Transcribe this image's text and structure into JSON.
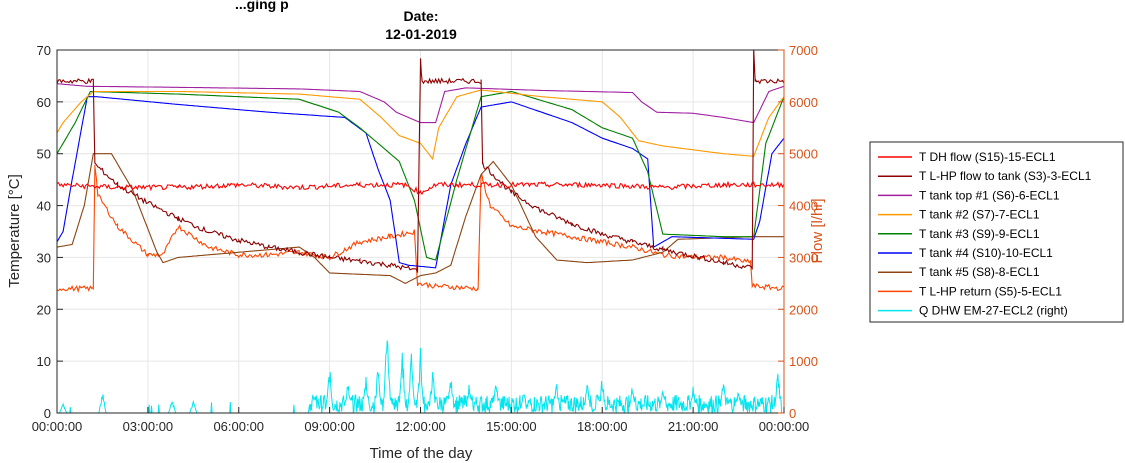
{
  "chart_data": {
    "type": "line",
    "title_partial": "...ging p",
    "title_line1": "Date:",
    "title_line2": "12-01-2019",
    "xlabel": "Time of the day",
    "ylabel": "Temperature [°C]",
    "ylabel_right": "Flow [l/hr]",
    "ylim": [
      0,
      70
    ],
    "ylim_right": [
      0,
      7000
    ],
    "yticks": [
      0,
      10,
      20,
      30,
      40,
      50,
      60,
      70
    ],
    "yticks_right": [
      0,
      1000,
      2000,
      3000,
      4000,
      5000,
      6000,
      7000
    ],
    "xlim": [
      0,
      24
    ],
    "xtick_hours": [
      0,
      3,
      6,
      9,
      12,
      15,
      18,
      21,
      24
    ],
    "xtick_labels": [
      "00:00:00",
      "03:00:00",
      "06:00:00",
      "09:00:00",
      "12:00:00",
      "15:00:00",
      "18:00:00",
      "21:00:00",
      "00:00:00"
    ],
    "grid": true,
    "legend_position": "outside-right",
    "series": [
      {
        "name": "T DH flow (S15)-15-ECL1",
        "color": "#ff0000",
        "axis": "left",
        "x": [
          0,
          2,
          4,
          6,
          8,
          10,
          11.5,
          12,
          12.5,
          14,
          16,
          18,
          20,
          22,
          24
        ],
        "y": [
          44,
          43.5,
          43.5,
          44,
          43.5,
          44,
          44,
          42.5,
          44,
          44,
          44,
          44,
          43.5,
          44,
          44
        ],
        "noise": 0.5
      },
      {
        "name": "T L-HP flow to tank (S3)-3-ECL1",
        "color": "#8b0000",
        "axis": "left",
        "x": [
          0,
          1.2,
          1.25,
          2,
          3,
          4,
          5,
          6,
          7,
          8,
          9,
          10,
          11,
          11.9,
          12.0,
          12.05,
          14.0,
          14.05,
          15,
          16,
          17,
          18,
          19,
          20,
          21,
          22,
          22.95,
          23.0,
          23.05,
          24
        ],
        "y": [
          64,
          64,
          48,
          44,
          40.5,
          37.5,
          35,
          33.3,
          32,
          31,
          30,
          29.3,
          28.5,
          27.5,
          68,
          64,
          64,
          48,
          42.5,
          39,
          36.5,
          34.5,
          33,
          31.5,
          30.3,
          29,
          28,
          70,
          64,
          64
        ],
        "noise": 0.5
      },
      {
        "name": "T tank top #1 (S6)-6-ECL1",
        "color": "#a020a0",
        "axis": "left",
        "x": [
          0,
          1,
          4,
          8,
          10,
          10.8,
          11.2,
          12,
          12.5,
          12.8,
          13.5,
          16,
          19,
          19.3,
          19.8,
          21,
          22,
          23,
          23.5,
          24
        ],
        "y": [
          63.5,
          63,
          62.8,
          62.5,
          62,
          60,
          58,
          56,
          56,
          62,
          62.7,
          62.2,
          61.8,
          60,
          58,
          57.8,
          57,
          56,
          62,
          63
        ],
        "noise": 0
      },
      {
        "name": "T tank #2 (S7)-7-ECL1",
        "color": "#ff9900",
        "axis": "left",
        "x": [
          0,
          0.2,
          0.8,
          1.2,
          4,
          8,
          10,
          10.7,
          11.3,
          12,
          12.4,
          12.6,
          13.2,
          14,
          16,
          18,
          18.6,
          19.2,
          20,
          22,
          23,
          23.5,
          24
        ],
        "y": [
          54,
          56,
          60,
          62,
          62,
          61.5,
          60.5,
          57,
          53.5,
          52,
          49,
          55,
          61,
          62.3,
          61,
          60,
          57,
          52.5,
          51.5,
          50,
          49.5,
          57,
          61
        ],
        "noise": 0
      },
      {
        "name": "T tank #3 (S9)-9-ECL1",
        "color": "#008000",
        "axis": "left",
        "x": [
          0,
          0.2,
          0.6,
          1.1,
          4,
          8,
          9.3,
          10,
          10.8,
          11.3,
          11.8,
          12.2,
          12.5,
          13.2,
          14,
          15,
          17,
          18,
          19,
          19.5,
          20,
          22,
          23,
          23.4,
          24
        ],
        "y": [
          50,
          52,
          56,
          62,
          61.5,
          60.5,
          58,
          55,
          51,
          48.5,
          41,
          30,
          29.5,
          45,
          61,
          62,
          58.5,
          55,
          53,
          46.5,
          34.5,
          34,
          34,
          52,
          61
        ],
        "noise": 0
      },
      {
        "name": "T tank #4 (S10)-10-ECL1",
        "color": "#0000ff",
        "axis": "left",
        "x": [
          0,
          0.2,
          0.5,
          1.0,
          1.3,
          4,
          7,
          9.5,
          10.2,
          10.6,
          11.0,
          11.3,
          11.6,
          12.5,
          13.0,
          13.5,
          14,
          15,
          17,
          18,
          19,
          19.5,
          19.7,
          20.3,
          23,
          23.2,
          23.6,
          24
        ],
        "y": [
          33,
          35,
          45,
          61,
          61,
          59.5,
          58,
          57,
          54,
          47,
          41,
          29,
          28.5,
          28,
          44,
          52,
          59,
          60,
          56,
          53,
          51,
          49,
          32,
          34,
          33.5,
          37,
          50,
          53
        ],
        "noise": 0
      },
      {
        "name": "T tank #5 (S8)-8-ECL1",
        "color": "#8b4513",
        "axis": "left",
        "x": [
          0,
          0.5,
          0.9,
          1.2,
          1.8,
          2.5,
          3.3,
          3.5,
          4,
          5,
          7,
          8,
          8.5,
          9,
          11,
          11.5,
          12,
          12.5,
          13.0,
          13.5,
          14,
          14.4,
          15,
          15.8,
          16.5,
          17.5,
          19,
          20,
          20.5,
          23,
          24
        ],
        "y": [
          32,
          32.5,
          40,
          50,
          50,
          43,
          31,
          29,
          30,
          30.5,
          31.5,
          32,
          30,
          27,
          26.5,
          25,
          26.5,
          27,
          28.5,
          38,
          46,
          48.5,
          44,
          34,
          29.5,
          29,
          29.5,
          31,
          33.5,
          34,
          34
        ],
        "noise": 0
      },
      {
        "name": "T L-HP return (S5)-5-ECL1",
        "color": "#ff4500",
        "axis": "left",
        "x": [
          0,
          1.2,
          1.25,
          1.35,
          2,
          3,
          3.5,
          4,
          5,
          6,
          7,
          8,
          9,
          10,
          11,
          11.8,
          11.9,
          12.5,
          13.9,
          14.0,
          14.05,
          14.3,
          15,
          16,
          17,
          18,
          19,
          20,
          21,
          22,
          22.9,
          22.95,
          24
        ],
        "y": [
          24,
          24,
          48,
          42,
          36,
          30.5,
          30.5,
          36,
          32,
          30.5,
          30.5,
          31,
          30,
          33,
          34,
          35,
          25,
          24.5,
          24,
          46,
          45,
          40,
          36,
          35,
          34,
          33,
          32,
          30.5,
          30,
          30,
          29,
          24.5,
          24
        ],
        "noise": 0.5
      },
      {
        "name": "Q DHW EM-27-ECL2 (right)",
        "color": "#00e5ee",
        "axis": "right",
        "type_hint": "spikes",
        "spikes": [
          [
            0.2,
            200
          ],
          [
            1.5,
            450
          ],
          [
            3.8,
            300
          ],
          [
            4.5,
            250
          ],
          [
            8.5,
            400
          ],
          [
            9.0,
            950
          ],
          [
            9.6,
            700
          ],
          [
            10.2,
            800
          ],
          [
            10.6,
            1000
          ],
          [
            10.9,
            1900
          ],
          [
            11.4,
            1300
          ],
          [
            11.7,
            1400
          ],
          [
            12.0,
            1300
          ],
          [
            12.4,
            900
          ],
          [
            13.0,
            800
          ],
          [
            13.6,
            600
          ],
          [
            14.5,
            700
          ],
          [
            15.4,
            500
          ],
          [
            16.5,
            650
          ],
          [
            17.5,
            700
          ],
          [
            18.0,
            750
          ],
          [
            19.0,
            600
          ],
          [
            20.0,
            550
          ],
          [
            21.0,
            600
          ],
          [
            22.0,
            700
          ],
          [
            22.5,
            500
          ],
          [
            23.8,
            900
          ]
        ]
      }
    ]
  }
}
